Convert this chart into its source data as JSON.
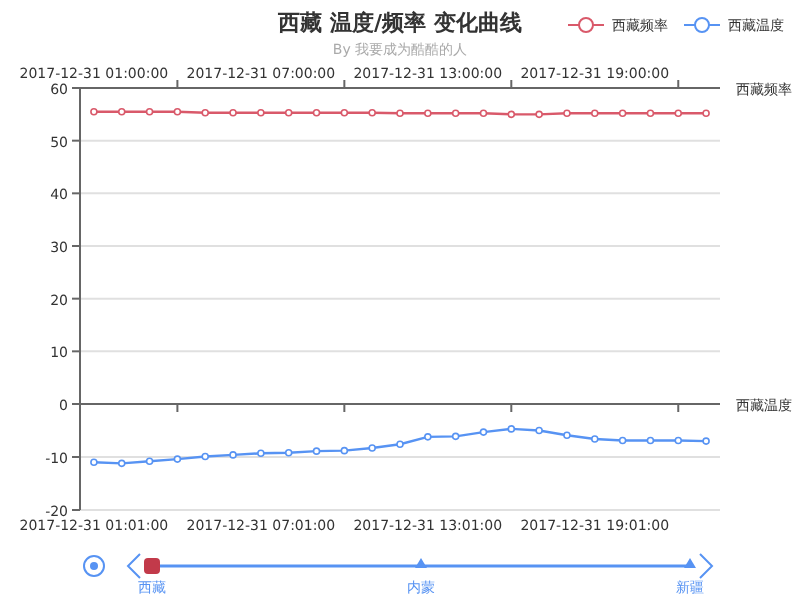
{
  "chart_data": [
    {
      "type": "line",
      "title": "西藏 温度/频率 变化曲线",
      "subtitle": "By 我要成为酷酷的人",
      "xlabel": "西藏频率",
      "legend": "top right",
      "grid": "y",
      "marker": "circle",
      "categories": [
        "2017-12-31 01:00:00",
        null,
        null,
        null,
        null,
        null,
        "2017-12-31 07:00:00",
        null,
        null,
        null,
        null,
        null,
        "2017-12-31 13:00:00",
        null,
        null,
        null,
        null,
        null,
        "2017-12-31 19:00:00",
        null,
        null,
        null,
        null
      ],
      "series": [
        {
          "name": "西藏频率",
          "color": "#d9596a",
          "values": [
            55.5,
            55.5,
            55.5,
            55.5,
            55.3,
            55.3,
            55.3,
            55.3,
            55.3,
            55.3,
            55.3,
            55.2,
            55.2,
            55.2,
            55.2,
            55.0,
            55.0,
            55.2,
            55.2,
            55.2,
            55.2,
            55.2,
            55.2
          ]
        }
      ],
      "ylim": [
        0,
        60
      ],
      "yticks": [
        0,
        10,
        20,
        30,
        40,
        50,
        60
      ]
    },
    {
      "type": "line",
      "xlabel": "西藏温度",
      "legend": "top right",
      "grid": "y",
      "marker": "circle",
      "categories": [
        "2017-12-31 01:01:00",
        null,
        null,
        null,
        null,
        null,
        "2017-12-31 07:01:00",
        null,
        null,
        null,
        null,
        null,
        "2017-12-31 13:01:00",
        null,
        null,
        null,
        null,
        null,
        "2017-12-31 19:01:00",
        null,
        null,
        null,
        null
      ],
      "series": [
        {
          "name": "西藏温度",
          "color": "#5793f3",
          "values": [
            -11.0,
            -11.2,
            -10.8,
            -10.4,
            -9.9,
            -9.6,
            -9.3,
            -9.2,
            -8.9,
            -8.8,
            -8.3,
            -7.6,
            -6.2,
            -6.1,
            -5.3,
            -4.7,
            -5.0,
            -5.9,
            -6.6,
            -6.9,
            -6.9,
            -6.9,
            -7.0
          ]
        }
      ],
      "ylim": [
        -20,
        0
      ],
      "yticks": [
        -20,
        -10,
        {
          "value": 0,
          "label": null
        }
      ]
    },
    {
      "type": "other",
      "categories": [
        "西藏",
        "内蒙",
        "新疆"
      ]
    }
  ]
}
